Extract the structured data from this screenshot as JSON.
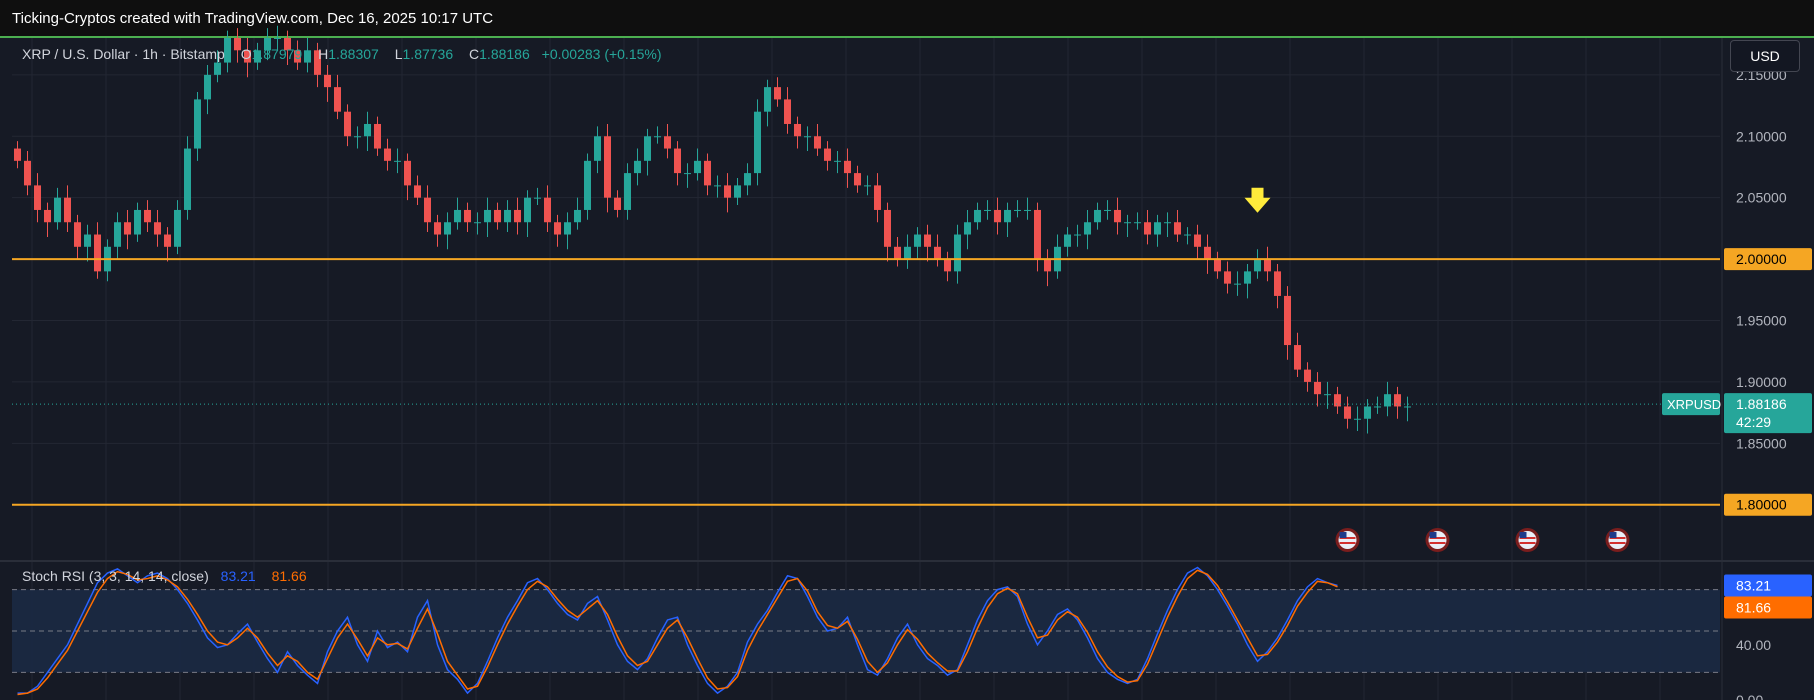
{
  "header": {
    "attribution": "Ticking-Cryptos created with TradingView.com, Dec 16, 2025 10:17 UTC"
  },
  "legend": {
    "symbol": "XRP / U.S. Dollar · 1h · Bitstamp",
    "open_label": "O",
    "open": "1.87979",
    "high_label": "H",
    "high": "1.88307",
    "low_label": "L",
    "low": "1.87736",
    "close_label": "C",
    "close": "1.88186",
    "change": "+0.00283 (+0.15%)"
  },
  "currency_button": "USD",
  "indicator": {
    "name": "Stoch RSI (3, 3, 14, 14, close)",
    "k_value": "83.21",
    "d_value": "81.66"
  },
  "colors": {
    "background": "#161a25",
    "grid": "#232733",
    "up": "#26a69a",
    "down": "#ef5350",
    "level": "#f5a623",
    "k": "#2962ff",
    "d": "#ff6d00",
    "arrow": "#ffeb3b"
  },
  "chart_data": [
    {
      "type": "candlestick",
      "title": "XRP / U.S. Dollar · 1h · Bitstamp",
      "ylim": [
        1.755,
        2.18
      ],
      "y_ticks": [
        "2.15000",
        "2.10000",
        "2.05000",
        "1.95000",
        "1.90000",
        "1.85000"
      ],
      "levels": [
        {
          "value": 2.0,
          "label": "2.00000"
        },
        {
          "value": 1.8,
          "label": "1.80000"
        }
      ],
      "last_price": {
        "symbol": "XRPUSD",
        "value": 1.88186,
        "label": "1.88186",
        "countdown": "42:29"
      },
      "arrow_at_index": 124,
      "event_icons_at_index": [
        133,
        142,
        151,
        160
      ],
      "close": [
        2.08,
        2.06,
        2.04,
        2.03,
        2.05,
        2.03,
        2.01,
        2.02,
        1.99,
        2.01,
        2.03,
        2.02,
        2.04,
        2.03,
        2.02,
        2.01,
        2.04,
        2.09,
        2.13,
        2.15,
        2.16,
        2.18,
        2.17,
        2.16,
        2.17,
        2.18,
        2.18,
        2.17,
        2.16,
        2.17,
        2.15,
        2.14,
        2.12,
        2.1,
        2.1,
        2.11,
        2.09,
        2.08,
        2.08,
        2.06,
        2.05,
        2.03,
        2.02,
        2.03,
        2.04,
        2.03,
        2.03,
        2.04,
        2.03,
        2.04,
        2.03,
        2.05,
        2.05,
        2.03,
        2.02,
        2.03,
        2.04,
        2.08,
        2.1,
        2.05,
        2.04,
        2.07,
        2.08,
        2.1,
        2.1,
        2.09,
        2.07,
        2.07,
        2.08,
        2.06,
        2.06,
        2.05,
        2.06,
        2.07,
        2.12,
        2.14,
        2.13,
        2.11,
        2.1,
        2.1,
        2.09,
        2.08,
        2.08,
        2.07,
        2.06,
        2.06,
        2.04,
        2.01,
        2.0,
        2.01,
        2.02,
        2.01,
        2.0,
        1.99,
        2.02,
        2.03,
        2.04,
        2.04,
        2.03,
        2.04,
        2.04,
        2.04,
        2.0,
        1.99,
        2.01,
        2.02,
        2.02,
        2.03,
        2.04,
        2.04,
        2.03,
        2.03,
        2.03,
        2.02,
        2.03,
        2.03,
        2.02,
        2.02,
        2.01,
        2.0,
        1.99,
        1.98,
        1.98,
        1.99,
        2.0,
        1.99,
        1.97,
        1.93,
        1.91,
        1.9,
        1.89,
        1.89,
        1.88,
        1.87,
        1.87,
        1.88,
        1.88,
        1.89,
        1.88,
        1.88
      ]
    },
    {
      "type": "line",
      "title": "Stoch RSI (3, 3, 14, 14, close)",
      "ylim": [
        0,
        100
      ],
      "y_ticks": [
        "40.00",
        "0.00"
      ],
      "bands": [
        80,
        50,
        20
      ],
      "series": [
        {
          "name": "K",
          "last_label": "83.21",
          "values": [
            5,
            5,
            10,
            20,
            30,
            40,
            55,
            70,
            85,
            92,
            95,
            90,
            85,
            90,
            92,
            88,
            80,
            70,
            58,
            45,
            38,
            40,
            48,
            55,
            42,
            30,
            20,
            35,
            25,
            18,
            12,
            35,
            50,
            60,
            40,
            28,
            50,
            38,
            42,
            35,
            60,
            72,
            40,
            22,
            15,
            5,
            12,
            28,
            45,
            60,
            72,
            85,
            88,
            80,
            70,
            62,
            58,
            70,
            75,
            58,
            40,
            28,
            22,
            30,
            45,
            58,
            60,
            40,
            25,
            12,
            5,
            10,
            20,
            42,
            55,
            65,
            78,
            90,
            88,
            75,
            60,
            50,
            52,
            60,
            40,
            22,
            18,
            30,
            45,
            55,
            40,
            30,
            25,
            18,
            22,
            40,
            58,
            72,
            80,
            82,
            75,
            55,
            40,
            50,
            62,
            66,
            58,
            45,
            30,
            20,
            15,
            12,
            15,
            30,
            48,
            65,
            80,
            92,
            96,
            90,
            80,
            68,
            55,
            40,
            28,
            35,
            45,
            58,
            72,
            82,
            88,
            85,
            83
          ]
        },
        {
          "name": "D",
          "last_label": "81.66",
          "values": [
            4,
            5,
            8,
            16,
            26,
            36,
            50,
            64,
            78,
            88,
            93,
            91,
            87,
            88,
            90,
            87,
            82,
            73,
            62,
            50,
            42,
            40,
            45,
            52,
            45,
            34,
            25,
            32,
            28,
            20,
            15,
            30,
            45,
            55,
            44,
            32,
            45,
            40,
            41,
            37,
            52,
            66,
            48,
            28,
            18,
            8,
            10,
            24,
            40,
            55,
            68,
            80,
            86,
            82,
            73,
            65,
            60,
            66,
            72,
            62,
            46,
            32,
            25,
            28,
            40,
            52,
            58,
            45,
            30,
            16,
            8,
            9,
            17,
            36,
            50,
            62,
            74,
            86,
            88,
            79,
            64,
            54,
            52,
            57,
            44,
            28,
            20,
            27,
            40,
            51,
            44,
            34,
            27,
            21,
            21,
            35,
            52,
            67,
            77,
            81,
            77,
            60,
            45,
            47,
            58,
            64,
            60,
            49,
            35,
            24,
            17,
            13,
            14,
            26,
            43,
            60,
            75,
            88,
            94,
            91,
            83,
            71,
            58,
            45,
            32,
            33,
            42,
            54,
            68,
            78,
            86,
            85,
            82
          ]
        }
      ]
    }
  ]
}
